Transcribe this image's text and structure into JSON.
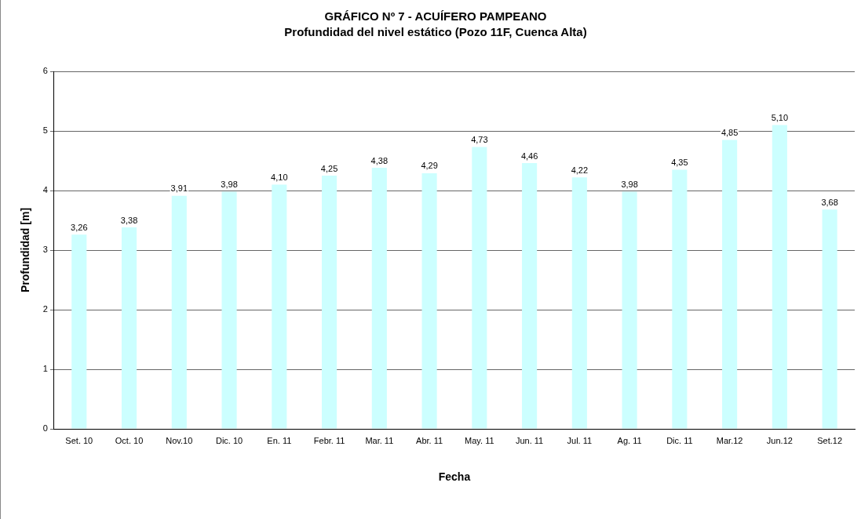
{
  "chart_data": {
    "type": "bar",
    "title": "GRÁFICO Nº 7 - ACUÍFERO PAMPEANO",
    "subtitle": "Profundidad del nivel estático (Pozo 11F, Cuenca Alta)",
    "xlabel": "Fecha",
    "ylabel": "Profundidad [m]",
    "categories": [
      "Set. 10",
      "Oct. 10",
      "Nov.10",
      "Dic. 10",
      "En. 11",
      "Febr. 11",
      "Mar. 11",
      "Abr. 11",
      "May. 11",
      "Jun. 11",
      "Jul. 11",
      "Ag. 11",
      "Dic. 11",
      "Mar.12",
      "Jun.12",
      "Set.12"
    ],
    "values": [
      3.26,
      3.38,
      3.91,
      3.98,
      4.1,
      4.25,
      4.38,
      4.29,
      4.73,
      4.46,
      4.22,
      3.98,
      4.35,
      4.85,
      5.1,
      3.68
    ],
    "value_labels": [
      "3,26",
      "3,38",
      "3,91",
      "3,98",
      "4,10",
      "4,25",
      "4,38",
      "4,29",
      "4,73",
      "4,46",
      "4,22",
      "3,98",
      "4,35",
      "4,85",
      "5,10",
      "3,68"
    ],
    "color": "#ccffff",
    "ylim": [
      0,
      6
    ],
    "yticks": [
      0,
      1,
      2,
      3,
      4,
      5,
      6
    ],
    "grid": "y",
    "legend": false
  }
}
